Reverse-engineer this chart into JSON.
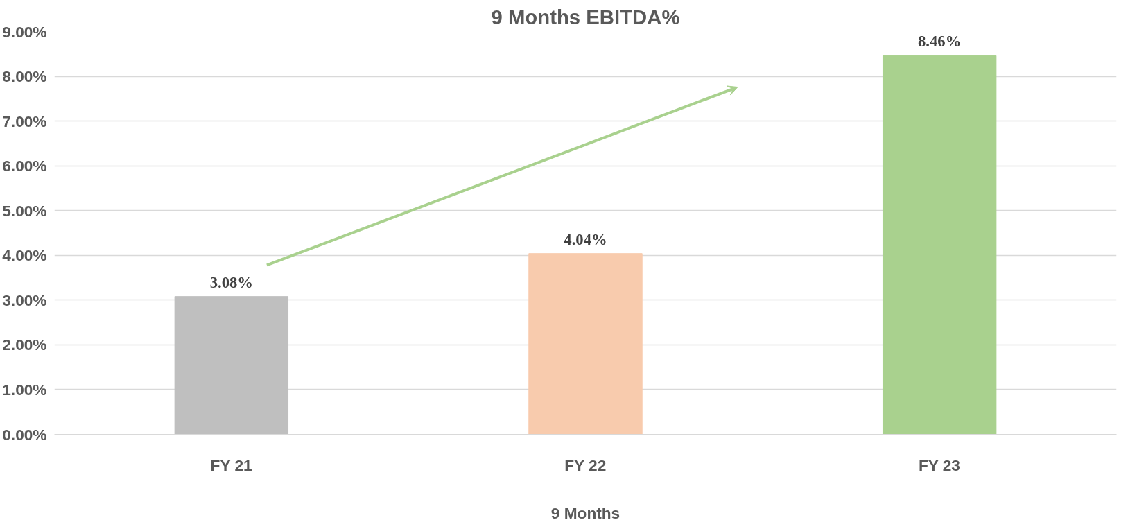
{
  "chart_data": {
    "type": "bar",
    "title": "9 Months EBITDA%",
    "xlabel": "9 Months",
    "categories": [
      "FY 21",
      "FY 22",
      "FY 23"
    ],
    "values": [
      3.08,
      4.04,
      8.46
    ],
    "colors": [
      "#bfbfbf",
      "#f8cbad",
      "#a9d18e"
    ],
    "value_labels": [
      "3.08%",
      "4.04%",
      "8.46%"
    ],
    "ylim": [
      0,
      9
    ],
    "yticks": [
      {
        "value": 0,
        "label": "0.00%"
      },
      {
        "value": 1,
        "label": "1.00%"
      },
      {
        "value": 2,
        "label": "2.00%"
      },
      {
        "value": 3,
        "label": "3.00%"
      },
      {
        "value": 4,
        "label": "4.00%"
      },
      {
        "value": 5,
        "label": "5.00%"
      },
      {
        "value": 6,
        "label": "6.00%"
      },
      {
        "value": 7,
        "label": "7.00%"
      },
      {
        "value": 8,
        "label": "8.00%"
      },
      {
        "value": 9,
        "label": "9.00%"
      }
    ],
    "grid": "y"
  }
}
